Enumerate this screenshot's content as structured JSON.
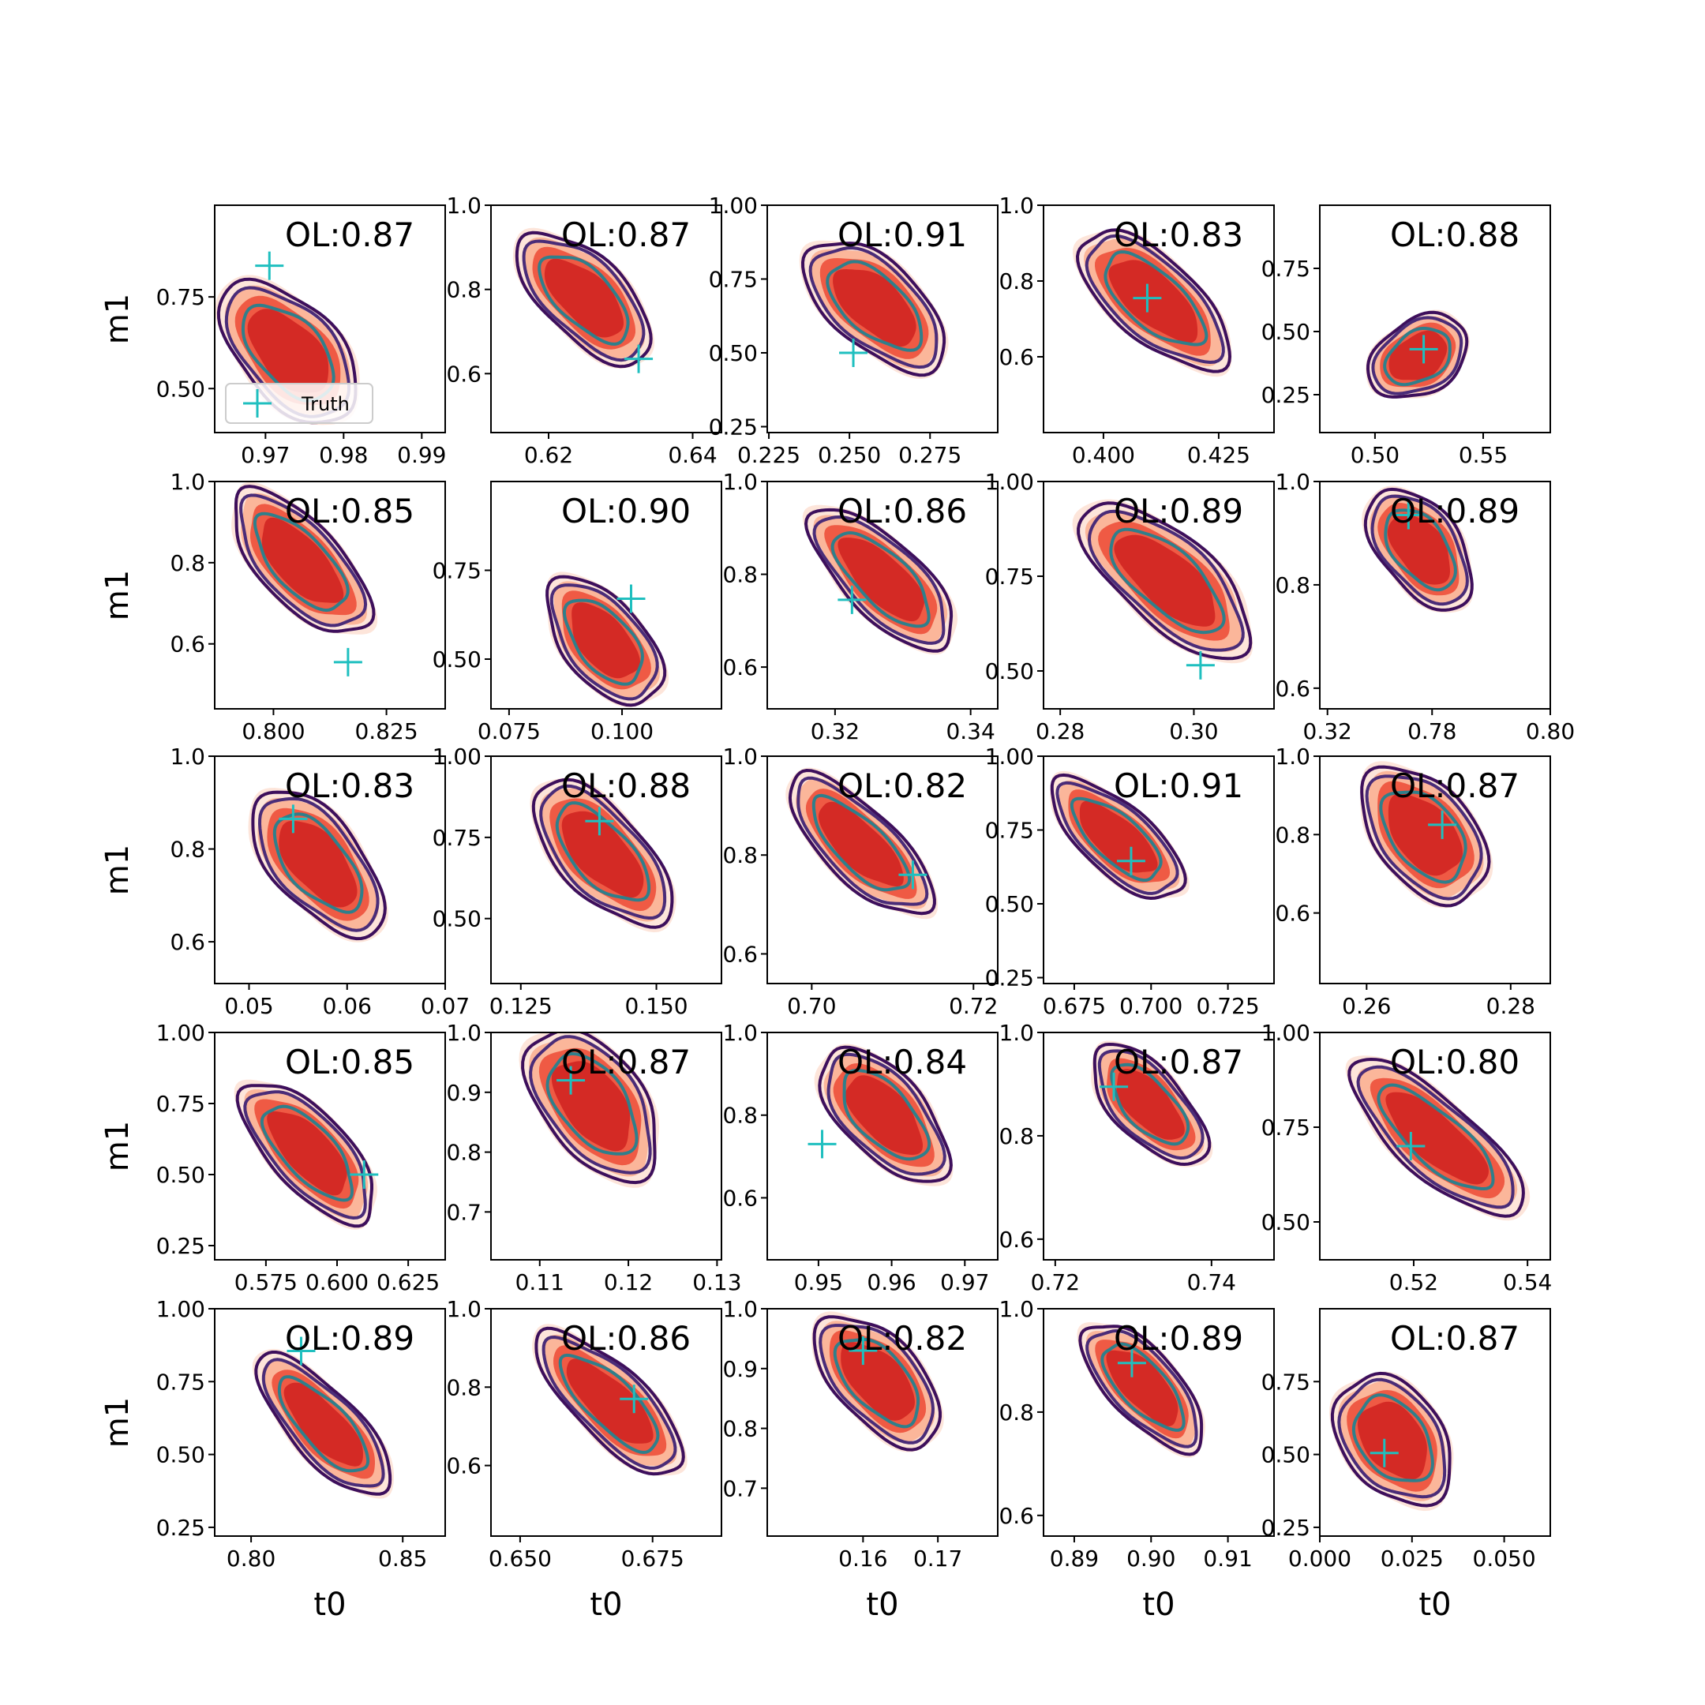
{
  "colors": {
    "fill_levels": [
      "#fde5da",
      "#fbb69a",
      "#ef5a44",
      "#d42a25"
    ],
    "line_outer": "#3d0f5c",
    "line_mid": "#4a2c78",
    "line_inner": "#2f7f8b",
    "truth": "#1fbfbf"
  },
  "legend": {
    "label": "Truth",
    "marker": "plus-marker"
  },
  "chart_data": {
    "type": "contour-grid",
    "rows": 5,
    "cols": 5,
    "xlabel": "t0",
    "ylabel": "m1",
    "panels": [
      {
        "ol": "OL:0.87",
        "xticks": [
          "0.97",
          "0.98",
          "0.99"
        ],
        "xtv": [
          0.97,
          0.98,
          0.99
        ],
        "xlim": [
          0.9635,
          0.993
        ],
        "yticks": [
          "0.75",
          "0.50"
        ],
        "ytv": [
          0.75,
          0.5
        ],
        "ylim": [
          0.38,
          1.0
        ],
        "center": [
          0.973,
          0.6
        ],
        "radii": [
          0.0055,
          0.21
        ],
        "tilt": -0.75,
        "truth": [
          0.9705,
          0.835
        ]
      },
      {
        "ol": "OL:0.87",
        "xticks": [
          "0.62",
          "0.64"
        ],
        "xtv": [
          0.62,
          0.64
        ],
        "xlim": [
          0.612,
          0.644
        ],
        "yticks": [
          "1.0",
          "0.8",
          "0.6"
        ],
        "ytv": [
          1.0,
          0.8,
          0.6
        ],
        "ylim": [
          0.46,
          1.0
        ],
        "center": [
          0.625,
          0.78
        ],
        "radii": [
          0.005,
          0.18
        ],
        "tilt": -0.8,
        "truth": [
          0.6325,
          0.635
        ]
      },
      {
        "ol": "OL:0.91",
        "xticks": [
          "0.225",
          "0.250",
          "0.275"
        ],
        "xtv": [
          0.225,
          0.25,
          0.275
        ],
        "xlim": [
          0.2245,
          0.296
        ],
        "yticks": [
          "1.00",
          "0.75",
          "0.50",
          "0.25"
        ],
        "ytv": [
          1.0,
          0.75,
          0.5,
          0.25
        ],
        "ylim": [
          0.23,
          1.0
        ],
        "center": [
          0.258,
          0.66
        ],
        "radii": [
          0.012,
          0.26
        ],
        "tilt": -0.85,
        "truth": [
          0.2512,
          0.5
        ]
      },
      {
        "ol": "OL:0.83",
        "xticks": [
          "0.400",
          "0.425"
        ],
        "xtv": [
          0.4,
          0.425
        ],
        "xlim": [
          0.387,
          0.437
        ],
        "yticks": [
          "1.0",
          "0.8",
          "0.6"
        ],
        "ytv": [
          1.0,
          0.8,
          0.6
        ],
        "ylim": [
          0.4,
          1.0
        ],
        "center": [
          0.411,
          0.75
        ],
        "radii": [
          0.008,
          0.22
        ],
        "tilt": -0.85,
        "truth": [
          0.4095,
          0.755
        ]
      },
      {
        "ol": "OL:0.88",
        "xticks": [
          "0.50",
          "0.55"
        ],
        "xtv": [
          0.5,
          0.55
        ],
        "xlim": [
          0.4745,
          0.581
        ],
        "yticks": [
          "0.75",
          "0.50",
          "0.25"
        ],
        "ytv": [
          0.75,
          0.5,
          0.25
        ],
        "ylim": [
          0.1,
          1.0
        ],
        "center": [
          0.52,
          0.4
        ],
        "radii": [
          0.022,
          0.13
        ],
        "tilt": -0.55,
        "truth": [
          0.5225,
          0.43
        ]
      },
      {
        "ol": "OL:0.85",
        "xticks": [
          "0.800",
          "0.825"
        ],
        "xtv": [
          0.8,
          0.825
        ],
        "xlim": [
          0.787,
          0.838
        ],
        "yticks": [
          "1.0",
          "0.8",
          "0.6"
        ],
        "ytv": [
          1.0,
          0.8,
          0.6
        ],
        "ylim": [
          0.44,
          1.0
        ],
        "center": [
          0.806,
          0.8
        ],
        "radii": [
          0.008,
          0.2
        ],
        "tilt": -0.75,
        "truth": [
          0.8165,
          0.555
        ]
      },
      {
        "ol": "OL:0.90",
        "xticks": [
          "0.075",
          "0.100"
        ],
        "xtv": [
          0.075,
          0.1
        ],
        "xlim": [
          0.071,
          0.122
        ],
        "yticks": [
          "0.75",
          "0.50"
        ],
        "ytv": [
          0.75,
          0.5
        ],
        "ylim": [
          0.36,
          1.0
        ],
        "center": [
          0.096,
          0.55
        ],
        "radii": [
          0.008,
          0.19
        ],
        "tilt": -0.7,
        "truth": [
          0.102,
          0.67
        ]
      },
      {
        "ol": "OL:0.86",
        "xticks": [
          "0.32",
          "0.34"
        ],
        "xtv": [
          0.32,
          0.34
        ],
        "xlim": [
          0.31,
          0.344
        ],
        "yticks": [
          "1.0",
          "0.8",
          "0.6"
        ],
        "ytv": [
          1.0,
          0.8,
          0.6
        ],
        "ylim": [
          0.51,
          1.0
        ],
        "center": [
          0.327,
          0.79
        ],
        "radii": [
          0.005,
          0.18
        ],
        "tilt": -0.8,
        "truth": [
          0.3225,
          0.745
        ]
      },
      {
        "ol": "OL:0.89",
        "xticks": [
          "0.28",
          "0.30",
          "0.32"
        ],
        "xtv": [
          0.28,
          0.3,
          0.32
        ],
        "xlim": [
          0.2775,
          0.312
        ],
        "yticks": [
          "1.00",
          "0.75",
          "0.50"
        ],
        "ytv": [
          1.0,
          0.75,
          0.5
        ],
        "ylim": [
          0.4,
          1.0
        ],
        "center": [
          0.296,
          0.74
        ],
        "radii": [
          0.006,
          0.25
        ],
        "tilt": -0.85,
        "truth": [
          0.301,
          0.515
        ]
      },
      {
        "ol": "OL:0.89",
        "xticks": [
          "0.78",
          "0.80"
        ],
        "xtv": [
          0.78,
          0.8
        ],
        "xlim": [
          0.761,
          0.8
        ],
        "yticks": [
          "1.0",
          "0.8",
          "0.6"
        ],
        "ytv": [
          1.0,
          0.8,
          0.6
        ],
        "ylim": [
          0.56,
          1.0
        ],
        "center": [
          0.778,
          0.87
        ],
        "radii": [
          0.006,
          0.12
        ],
        "tilt": -0.65,
        "truth": [
          0.776,
          0.935
        ]
      },
      {
        "ol": "OL:0.83",
        "xticks": [
          "0.05",
          "0.06",
          "0.07"
        ],
        "xtv": [
          0.05,
          0.06,
          0.07
        ],
        "xlim": [
          0.0465,
          0.07
        ],
        "yticks": [
          "1.0",
          "0.8",
          "0.6"
        ],
        "ytv": [
          1.0,
          0.8,
          0.6
        ],
        "ylim": [
          0.51,
          1.0
        ],
        "center": [
          0.057,
          0.77
        ],
        "radii": [
          0.004,
          0.17
        ],
        "tilt": -0.7,
        "truth": [
          0.0545,
          0.865
        ]
      },
      {
        "ol": "OL:0.88",
        "xticks": [
          "0.125",
          "0.150"
        ],
        "xtv": [
          0.125,
          0.15
        ],
        "xlim": [
          0.1195,
          0.162
        ],
        "yticks": [
          "1.00",
          "0.75",
          "0.50"
        ],
        "ytv": [
          1.0,
          0.75,
          0.5
        ],
        "ylim": [
          0.3,
          1.0
        ],
        "center": [
          0.14,
          0.7
        ],
        "radii": [
          0.007,
          0.25
        ],
        "tilt": -0.75,
        "truth": [
          0.1395,
          0.8
        ]
      },
      {
        "ol": "OL:0.82",
        "xticks": [
          "0.70",
          "0.72"
        ],
        "xtv": [
          0.7,
          0.72
        ],
        "xlim": [
          0.6945,
          0.723
        ],
        "yticks": [
          "1.0",
          "0.8",
          "0.6"
        ],
        "ytv": [
          1.0,
          0.8,
          0.6
        ],
        "ylim": [
          0.54,
          1.0
        ],
        "center": [
          0.706,
          0.82
        ],
        "radii": [
          0.004,
          0.17
        ],
        "tilt": -0.8,
        "truth": [
          0.7125,
          0.76
        ]
      },
      {
        "ol": "OL:0.91",
        "xticks": [
          "0.675",
          "0.700",
          "0.725"
        ],
        "xtv": [
          0.675,
          0.7,
          0.725
        ],
        "xlim": [
          0.665,
          0.74
        ],
        "yticks": [
          "1.00",
          "0.75",
          "0.50",
          "0.25"
        ],
        "ytv": [
          1.0,
          0.75,
          0.5,
          0.25
        ],
        "ylim": [
          0.23,
          1.0
        ],
        "center": [
          0.689,
          0.72
        ],
        "radii": [
          0.01,
          0.25
        ],
        "tilt": -0.85,
        "truth": [
          0.6935,
          0.645
        ]
      },
      {
        "ol": "OL:0.87",
        "xticks": [
          "0.26",
          "0.28"
        ],
        "xtv": [
          0.26,
          0.28
        ],
        "xlim": [
          0.2535,
          0.2855
        ],
        "yticks": [
          "1.0",
          "0.8",
          "0.6"
        ],
        "ytv": [
          1.0,
          0.8,
          0.6
        ],
        "ylim": [
          0.42,
          1.0
        ],
        "center": [
          0.268,
          0.8
        ],
        "radii": [
          0.006,
          0.18
        ],
        "tilt": -0.7,
        "truth": [
          0.2705,
          0.825
        ]
      },
      {
        "ol": "OL:0.85",
        "xticks": [
          "0.575",
          "0.600",
          "0.625"
        ],
        "xtv": [
          0.575,
          0.6,
          0.625
        ],
        "xlim": [
          0.557,
          0.638
        ],
        "yticks": [
          "1.00",
          "0.75",
          "0.50",
          "0.25"
        ],
        "ytv": [
          1.0,
          0.75,
          0.5,
          0.25
        ],
        "ylim": [
          0.2,
          1.0
        ],
        "center": [
          0.59,
          0.58
        ],
        "radii": [
          0.012,
          0.28
        ],
        "tilt": -0.75,
        "truth": [
          0.6095,
          0.5
        ]
      },
      {
        "ol": "OL:0.87",
        "xticks": [
          "0.11",
          "0.12",
          "0.13"
        ],
        "xtv": [
          0.11,
          0.12,
          0.13
        ],
        "xlim": [
          0.1045,
          0.1305
        ],
        "yticks": [
          "1.0",
          "0.9",
          "0.8",
          "0.7"
        ],
        "ytv": [
          1.0,
          0.9,
          0.8,
          0.7
        ],
        "ylim": [
          0.62,
          1.0
        ],
        "center": [
          0.116,
          0.88
        ],
        "radii": [
          0.005,
          0.13
        ],
        "tilt": -0.65,
        "truth": [
          0.1135,
          0.92
        ]
      },
      {
        "ol": "OL:0.84",
        "xticks": [
          "0.95",
          "0.96",
          "0.97"
        ],
        "xtv": [
          0.95,
          0.96,
          0.97
        ],
        "xlim": [
          0.943,
          0.9745
        ],
        "yticks": [
          "1.0",
          "0.8",
          "0.6"
        ],
        "ytv": [
          1.0,
          0.8,
          0.6
        ],
        "ylim": [
          0.45,
          1.0
        ],
        "center": [
          0.959,
          0.8
        ],
        "radii": [
          0.005,
          0.18
        ],
        "tilt": -0.75,
        "truth": [
          0.9505,
          0.73
        ]
      },
      {
        "ol": "OL:0.87",
        "xticks": [
          "0.72",
          "0.74"
        ],
        "xtv": [
          0.72,
          0.74
        ],
        "xlim": [
          0.7185,
          0.748
        ],
        "yticks": [
          "1.0",
          "0.8",
          "0.6"
        ],
        "ytv": [
          1.0,
          0.8,
          0.6
        ],
        "ylim": [
          0.56,
          1.0
        ],
        "center": [
          0.732,
          0.86
        ],
        "radii": [
          0.004,
          0.13
        ],
        "tilt": -0.75,
        "truth": [
          0.7275,
          0.895
        ]
      },
      {
        "ol": "OL:0.80",
        "xticks": [
          "0.52",
          "0.54"
        ],
        "xtv": [
          0.52,
          0.54
        ],
        "xlim": [
          0.5035,
          0.544
        ],
        "yticks": [
          "1.00",
          "0.75",
          "0.50"
        ],
        "ytv": [
          1.0,
          0.75,
          0.5
        ],
        "ylim": [
          0.4,
          1.0
        ],
        "center": [
          0.524,
          0.72
        ],
        "radii": [
          0.006,
          0.26
        ],
        "tilt": -0.85,
        "truth": [
          0.5195,
          0.7
        ]
      },
      {
        "ol": "OL:0.89",
        "xticks": [
          "0.80",
          "0.85"
        ],
        "xtv": [
          0.8,
          0.85
        ],
        "xlim": [
          0.788,
          0.864
        ],
        "yticks": [
          "1.00",
          "0.75",
          "0.50",
          "0.25"
        ],
        "ytv": [
          1.0,
          0.75,
          0.5,
          0.25
        ],
        "ylim": [
          0.22,
          1.0
        ],
        "center": [
          0.824,
          0.6
        ],
        "radii": [
          0.01,
          0.28
        ],
        "tilt": -0.75,
        "truth": [
          0.8165,
          0.855
        ]
      },
      {
        "ol": "OL:0.86",
        "xticks": [
          "0.650",
          "0.675"
        ],
        "xtv": [
          0.65,
          0.675
        ],
        "xlim": [
          0.6445,
          0.688
        ],
        "yticks": [
          "1.0",
          "0.8",
          "0.6"
        ],
        "ytv": [
          1.0,
          0.8,
          0.6
        ],
        "ylim": [
          0.42,
          1.0
        ],
        "center": [
          0.667,
          0.76
        ],
        "radii": [
          0.006,
          0.22
        ],
        "tilt": -0.8,
        "truth": [
          0.6715,
          0.77
        ]
      },
      {
        "ol": "OL:0.82",
        "xticks": [
          "0.16",
          "0.17"
        ],
        "xtv": [
          0.16,
          0.17
        ],
        "xlim": [
          0.1472,
          0.178
        ],
        "yticks": [
          "1.0",
          "0.9",
          "0.8",
          "0.7"
        ],
        "ytv": [
          1.0,
          0.9,
          0.8,
          0.7
        ],
        "ylim": [
          0.62,
          1.0
        ],
        "center": [
          0.162,
          0.88
        ],
        "radii": [
          0.005,
          0.12
        ],
        "tilt": -0.75,
        "truth": [
          0.16,
          0.93
        ]
      },
      {
        "ol": "OL:0.89",
        "xticks": [
          "0.89",
          "0.90",
          "0.91"
        ],
        "xtv": [
          0.89,
          0.9,
          0.91
        ],
        "xlim": [
          0.886,
          0.916
        ],
        "yticks": [
          "1.0",
          "0.8",
          "0.6"
        ],
        "ytv": [
          1.0,
          0.8,
          0.6
        ],
        "ylim": [
          0.56,
          1.0
        ],
        "center": [
          0.899,
          0.85
        ],
        "radii": [
          0.004,
          0.14
        ],
        "tilt": -0.75,
        "truth": [
          0.8975,
          0.895
        ]
      },
      {
        "ol": "OL:0.87",
        "xticks": [
          "0.000",
          "0.025",
          "0.050"
        ],
        "xtv": [
          0.0,
          0.025,
          0.05
        ],
        "xlim": [
          0.0,
          0.0625
        ],
        "yticks": [
          "0.75",
          "0.50",
          "0.25"
        ],
        "ytv": [
          0.75,
          0.5,
          0.25
        ],
        "ylim": [
          0.22,
          1.0
        ],
        "center": [
          0.02,
          0.55
        ],
        "radii": [
          0.012,
          0.22
        ],
        "tilt": -0.65,
        "truth": [
          0.0175,
          0.505
        ]
      }
    ]
  }
}
